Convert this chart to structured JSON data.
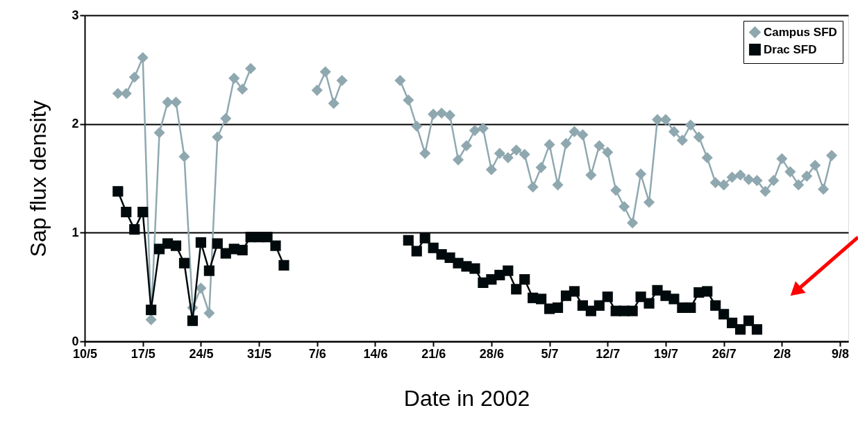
{
  "chart_data": {
    "type": "line",
    "xlabel": "Date in 2002",
    "ylabel": "Sap flux density",
    "xlim": [
      "2002-05-10",
      "2002-08-10"
    ],
    "ylim": [
      0,
      3
    ],
    "yticks": [
      0,
      1,
      2,
      3
    ],
    "xticks": [
      {
        "value": "2002-05-10",
        "label": "10/5"
      },
      {
        "value": "2002-05-17",
        "label": "17/5"
      },
      {
        "value": "2002-05-24",
        "label": "24/5"
      },
      {
        "value": "2002-05-31",
        "label": "31/5"
      },
      {
        "value": "2002-06-07",
        "label": "7/6"
      },
      {
        "value": "2002-06-14",
        "label": "14/6"
      },
      {
        "value": "2002-06-21",
        "label": "21/6"
      },
      {
        "value": "2002-06-28",
        "label": "28/6"
      },
      {
        "value": "2002-07-05",
        "label": "5/7"
      },
      {
        "value": "2002-07-12",
        "label": "12/7"
      },
      {
        "value": "2002-07-19",
        "label": "19/7"
      },
      {
        "value": "2002-07-26",
        "label": "26/7"
      },
      {
        "value": "2002-08-02",
        "label": "2/8"
      },
      {
        "value": "2002-08-09",
        "label": "9/8"
      }
    ],
    "grid": "y",
    "legend": "top right",
    "line_style": "solid",
    "series": [
      {
        "name": "Campus SFD",
        "color": "#8fa8b0",
        "marker": "diamond",
        "x": [
          "2002-05-14",
          "2002-05-15",
          "2002-05-16",
          "2002-05-17",
          "2002-05-18",
          "2002-05-19",
          "2002-05-20",
          "2002-05-21",
          "2002-05-22",
          "2002-05-23",
          "2002-05-24",
          "2002-05-25",
          "2002-05-26",
          "2002-05-27",
          "2002-05-28",
          "2002-05-29",
          "2002-05-30",
          "2002-06-01",
          "2002-06-07",
          "2002-06-08",
          "2002-06-09",
          "2002-06-10",
          "2002-06-13",
          "2002-06-17",
          "2002-06-18",
          "2002-06-19",
          "2002-06-20",
          "2002-06-21",
          "2002-06-22",
          "2002-06-23",
          "2002-06-24",
          "2002-06-25",
          "2002-06-26",
          "2002-06-27",
          "2002-06-28",
          "2002-06-29",
          "2002-06-30",
          "2002-07-01",
          "2002-07-02",
          "2002-07-03",
          "2002-07-04",
          "2002-07-05",
          "2002-07-06",
          "2002-07-07",
          "2002-07-08",
          "2002-07-09",
          "2002-07-10",
          "2002-07-11",
          "2002-07-12",
          "2002-07-13",
          "2002-07-14",
          "2002-07-15",
          "2002-07-16",
          "2002-07-17",
          "2002-07-18",
          "2002-07-19",
          "2002-07-20",
          "2002-07-21",
          "2002-07-22",
          "2002-07-23",
          "2002-07-24",
          "2002-07-25",
          "2002-07-26",
          "2002-07-27",
          "2002-07-28",
          "2002-07-29",
          "2002-07-30",
          "2002-07-31",
          "2002-08-01",
          "2002-08-02",
          "2002-08-03",
          "2002-08-04",
          "2002-08-05",
          "2002-08-06",
          "2002-08-07",
          "2002-08-08"
        ],
        "values": [
          2.28,
          2.28,
          2.43,
          2.61,
          0.2,
          1.92,
          2.2,
          2.2,
          1.7,
          0.31,
          0.49,
          0.26,
          1.88,
          2.05,
          2.42,
          2.32,
          2.51,
          null,
          2.31,
          2.48,
          2.19,
          2.4,
          null,
          2.4,
          2.22,
          1.98,
          1.73,
          2.09,
          2.1,
          2.08,
          1.67,
          1.8,
          1.94,
          1.96,
          1.58,
          1.73,
          1.69,
          1.76,
          1.72,
          1.42,
          1.6,
          1.81,
          1.44,
          1.82,
          1.93,
          1.9,
          1.53,
          1.8,
          1.74,
          1.39,
          1.24,
          1.09,
          1.54,
          1.28,
          2.04,
          2.04,
          1.93,
          1.85,
          1.99,
          1.88,
          1.69,
          1.46,
          1.44,
          1.51,
          1.53,
          1.49,
          1.48,
          1.38,
          1.48,
          1.68,
          1.56,
          1.44,
          1.52,
          1.62,
          1.4,
          1.71
        ]
      },
      {
        "name": "Drac SFD",
        "color": "#000a0c",
        "marker": "square",
        "x": [
          "2002-05-14",
          "2002-05-15",
          "2002-05-16",
          "2002-05-17",
          "2002-05-18",
          "2002-05-19",
          "2002-05-20",
          "2002-05-21",
          "2002-05-22",
          "2002-05-23",
          "2002-05-24",
          "2002-05-25",
          "2002-05-26",
          "2002-05-27",
          "2002-05-28",
          "2002-05-29",
          "2002-05-30",
          "2002-05-31",
          "2002-06-01",
          "2002-06-02",
          "2002-06-03",
          "2002-06-10",
          "2002-06-18",
          "2002-06-19",
          "2002-06-20",
          "2002-06-21",
          "2002-06-22",
          "2002-06-23",
          "2002-06-24",
          "2002-06-25",
          "2002-06-26",
          "2002-06-27",
          "2002-06-28",
          "2002-06-29",
          "2002-06-30",
          "2002-07-01",
          "2002-07-02",
          "2002-07-03",
          "2002-07-04",
          "2002-07-05",
          "2002-07-06",
          "2002-07-07",
          "2002-07-08",
          "2002-07-09",
          "2002-07-10",
          "2002-07-11",
          "2002-07-12",
          "2002-07-13",
          "2002-07-14",
          "2002-07-15",
          "2002-07-16",
          "2002-07-17",
          "2002-07-18",
          "2002-07-19",
          "2002-07-20",
          "2002-07-21",
          "2002-07-22",
          "2002-07-23",
          "2002-07-24",
          "2002-07-25",
          "2002-07-26",
          "2002-07-27",
          "2002-07-28",
          "2002-07-29",
          "2002-07-30"
        ],
        "values": [
          1.38,
          1.19,
          1.03,
          1.19,
          0.29,
          0.85,
          0.9,
          0.88,
          0.72,
          0.19,
          0.91,
          0.65,
          0.9,
          0.81,
          0.85,
          0.84,
          0.96,
          0.96,
          0.96,
          0.88,
          0.7,
          null,
          0.93,
          0.83,
          0.95,
          0.86,
          0.8,
          0.77,
          0.72,
          0.69,
          0.67,
          0.54,
          0.57,
          0.61,
          0.65,
          0.48,
          0.57,
          0.4,
          0.39,
          0.3,
          0.31,
          0.42,
          0.46,
          0.33,
          0.28,
          0.33,
          0.41,
          0.28,
          0.28,
          0.28,
          0.41,
          0.35,
          0.47,
          0.42,
          0.39,
          0.31,
          0.31,
          0.45,
          0.46,
          0.33,
          0.25,
          0.17,
          0.11,
          0.19,
          0.11
        ]
      }
    ]
  }
}
